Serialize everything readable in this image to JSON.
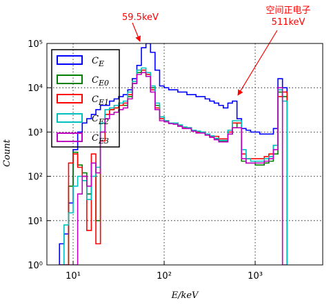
{
  "chart_data": {
    "type": "step-histogram",
    "xlabel": "E/keV",
    "ylabel": "Count",
    "xscale": "log",
    "yscale": "log",
    "grid": true,
    "legend": "upper left",
    "xlim": [
      5.15,
      5520
    ],
    "ylim": [
      1,
      100000
    ],
    "xticks": [
      {
        "value": 10,
        "label": "10¹"
      },
      {
        "value": 100,
        "label": "10²"
      },
      {
        "value": 1000,
        "label": "10³"
      }
    ],
    "yticks": [
      {
        "value": 1,
        "label": "10⁰"
      },
      {
        "value": 10,
        "label": "10¹"
      },
      {
        "value": 100,
        "label": "10²"
      },
      {
        "value": 1000,
        "label": "10³"
      },
      {
        "value": 10000,
        "label": "10⁴"
      },
      {
        "value": 100000,
        "label": "10⁵"
      }
    ],
    "bins": [
      7.079,
      7.943,
      8.913,
      10,
      11.22,
      12.59,
      14.13,
      15.85,
      17.78,
      19.95,
      22.39,
      25.12,
      28.18,
      31.62,
      35.48,
      39.81,
      44.67,
      50.12,
      56.23,
      63.1,
      70.79,
      79.43,
      89.13,
      100,
      112.2,
      125.9,
      141.3,
      158.5,
      177.8,
      199.5,
      223.9,
      251.2,
      281.8,
      316.2,
      354.8,
      398.1,
      446.7,
      501.2,
      562.3,
      631,
      707.9,
      794.3,
      891.3,
      1000,
      1122,
      1259,
      1413,
      1585,
      1778,
      1995,
      2239
    ],
    "series": [
      {
        "name": "CE",
        "color": "#0000ff",
        "values": [
          3,
          5,
          25,
          400,
          1000,
          1600,
          2000,
          2500,
          3200,
          4000,
          4000,
          5000,
          5600,
          6300,
          7000,
          9000,
          16000,
          32000,
          80000,
          100000,
          63000,
          25000,
          11000,
          10000,
          9000,
          9000,
          8000,
          8000,
          7000,
          7000,
          6300,
          6300,
          5600,
          5000,
          4500,
          4000,
          3500,
          4500,
          5000,
          2000,
          1200,
          1100,
          1000,
          1000,
          900,
          900,
          900,
          1200,
          16000,
          10000
        ]
      },
      {
        "name": "CE0",
        "color": "#007f00",
        "values": [
          0,
          0,
          60,
          350,
          180,
          120,
          40,
          200,
          10,
          1000,
          2500,
          3200,
          3500,
          4000,
          4000,
          6300,
          12500,
          22000,
          25000,
          20000,
          10000,
          4000,
          2200,
          1800,
          1600,
          1600,
          1400,
          1250,
          1250,
          1100,
          1000,
          1000,
          900,
          800,
          700,
          630,
          630,
          900,
          1250,
          1600,
          220,
          200,
          200,
          180,
          180,
          200,
          220,
          320,
          8000,
          6300
        ]
      },
      {
        "name": "CE1",
        "color": "#ff0000",
        "values": [
          0,
          0,
          200,
          320,
          160,
          100,
          6,
          320,
          3,
          630,
          2500,
          3200,
          3500,
          4000,
          4500,
          7000,
          14000,
          25000,
          25000,
          20000,
          9000,
          3500,
          2000,
          1800,
          1600,
          1600,
          1400,
          1250,
          1250,
          1100,
          1000,
          1000,
          900,
          800,
          800,
          700,
          700,
          1000,
          1600,
          1600,
          320,
          250,
          250,
          250,
          250,
          280,
          320,
          500,
          6300,
          8000
        ]
      },
      {
        "name": "CE2",
        "color": "#00bfbf",
        "values": [
          0,
          8,
          15,
          60,
          100,
          80,
          30,
          100,
          160,
          1600,
          3200,
          3500,
          4000,
          4500,
          5000,
          8000,
          14000,
          25000,
          28000,
          22000,
          11000,
          4500,
          2200,
          1800,
          1600,
          1600,
          1450,
          1300,
          1250,
          1100,
          1050,
          1000,
          900,
          820,
          720,
          650,
          650,
          1100,
          1800,
          1800,
          400,
          250,
          220,
          220,
          220,
          250,
          280,
          500,
          9000,
          5000
        ]
      },
      {
        "name": "CE3",
        "color": "#bf00bf",
        "values": [
          0,
          0,
          0,
          0,
          40,
          100,
          60,
          200,
          120,
          1000,
          2000,
          2500,
          2800,
          3200,
          3500,
          5600,
          12500,
          20000,
          22000,
          18000,
          8000,
          3200,
          1800,
          1700,
          1550,
          1500,
          1350,
          1200,
          1200,
          1050,
          950,
          950,
          850,
          760,
          670,
          600,
          600,
          900,
          1250,
          1250,
          250,
          200,
          200,
          200,
          200,
          220,
          250,
          400,
          10000,
          0
        ]
      }
    ],
    "annotations": [
      {
        "text": "59.5keV",
        "color": "#ff0000"
      },
      {
        "lines": [
          "空间正电子",
          "511keV"
        ],
        "color": "#ff0000"
      }
    ]
  }
}
